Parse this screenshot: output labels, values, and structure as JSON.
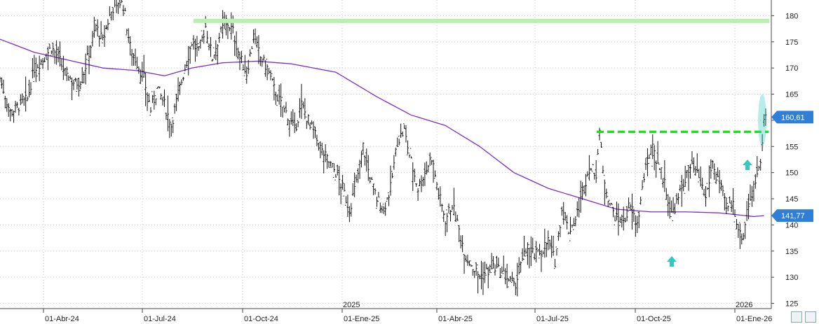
{
  "colors": {
    "price_bars": "#111111",
    "moving_average": "#7a2fc8",
    "resistance_top": "#b8f0b0",
    "breakout_line": "#22dd22",
    "arrows": "#33c9c0",
    "price_tag": "#2f7fd6",
    "grid": "#c8c8c8"
  },
  "chart_data": {
    "type": "ohlc-bar",
    "y_range": [
      124,
      183
    ],
    "y_ticks": [
      125,
      130,
      135,
      140,
      145,
      150,
      155,
      160,
      165,
      170,
      175,
      180
    ],
    "x_ticks": [
      "01-Abr-24",
      "01-Jul-24",
      "01-Oct-24",
      "01-Ene-25",
      "01-Abr-25",
      "01-Jul-25",
      "01-Oct-25",
      "01-Ene-26"
    ],
    "year_labels": [
      "2025",
      "2026"
    ],
    "grid": "dotted",
    "price_tags": [
      {
        "label": "160,61",
        "value": 160.61
      },
      {
        "label": "141,77",
        "value": 141.77
      }
    ],
    "price_path": [
      [
        0,
        168
      ],
      [
        6,
        161.5
      ],
      [
        12,
        163
      ],
      [
        16,
        164
      ],
      [
        20,
        170
      ],
      [
        26,
        172
      ],
      [
        30,
        174
      ],
      [
        34,
        172
      ],
      [
        38,
        169
      ],
      [
        44,
        167
      ],
      [
        48,
        168
      ],
      [
        52,
        173
      ],
      [
        56,
        178
      ],
      [
        60,
        175
      ],
      [
        64,
        180
      ],
      [
        68,
        183
      ],
      [
        72,
        182
      ],
      [
        76,
        174
      ],
      [
        80,
        171
      ],
      [
        84,
        168
      ],
      [
        88,
        162
      ],
      [
        92,
        166
      ],
      [
        96,
        163
      ],
      [
        100,
        159
      ],
      [
        104,
        165
      ],
      [
        108,
        170
      ],
      [
        112,
        175
      ],
      [
        116,
        173
      ],
      [
        120,
        178
      ],
      [
        124,
        172
      ],
      [
        128,
        176
      ],
      [
        132,
        179
      ],
      [
        136,
        177
      ],
      [
        140,
        172
      ],
      [
        144,
        169
      ],
      [
        148,
        176
      ],
      [
        152,
        172
      ],
      [
        156,
        170
      ],
      [
        160,
        166
      ],
      [
        164,
        163
      ],
      [
        168,
        161
      ],
      [
        172,
        158
      ],
      [
        176,
        163
      ],
      [
        180,
        160
      ],
      [
        184,
        157
      ],
      [
        188,
        154
      ],
      [
        192,
        152
      ],
      [
        196,
        150
      ],
      [
        200,
        147
      ],
      [
        204,
        143
      ],
      [
        208,
        148
      ],
      [
        212,
        155
      ],
      [
        216,
        149
      ],
      [
        220,
        145
      ],
      [
        224,
        143
      ],
      [
        228,
        147
      ],
      [
        232,
        156
      ],
      [
        236,
        158
      ],
      [
        240,
        152
      ],
      [
        244,
        147
      ],
      [
        248,
        150
      ],
      [
        252,
        153
      ],
      [
        256,
        146
      ],
      [
        260,
        141
      ],
      [
        264,
        144
      ],
      [
        268,
        139
      ],
      [
        272,
        134
      ],
      [
        276,
        132
      ],
      [
        280,
        130
      ],
      [
        284,
        131
      ],
      [
        288,
        132
      ],
      [
        292,
        131
      ],
      [
        296,
        130
      ],
      [
        300,
        128
      ],
      [
        304,
        132
      ],
      [
        308,
        136
      ],
      [
        312,
        134
      ],
      [
        316,
        135
      ],
      [
        320,
        137
      ],
      [
        324,
        133
      ],
      [
        328,
        143
      ],
      [
        332,
        139
      ],
      [
        336,
        141
      ],
      [
        340,
        146
      ],
      [
        344,
        151
      ],
      [
        348,
        150
      ],
      [
        350,
        158
      ],
      [
        352,
        150
      ],
      [
        356,
        144
      ],
      [
        360,
        141
      ],
      [
        364,
        141
      ],
      [
        368,
        143
      ],
      [
        372,
        140
      ],
      [
        376,
        149
      ],
      [
        380,
        155
      ],
      [
        384,
        152
      ],
      [
        388,
        148
      ],
      [
        392,
        142
      ],
      [
        396,
        145
      ],
      [
        400,
        149
      ],
      [
        404,
        151
      ],
      [
        408,
        149
      ],
      [
        412,
        145
      ],
      [
        416,
        152
      ],
      [
        420,
        148
      ],
      [
        424,
        143
      ],
      [
        428,
        144
      ],
      [
        432,
        138
      ],
      [
        434,
        138
      ],
      [
        436,
        143
      ],
      [
        440,
        147
      ],
      [
        444,
        153
      ],
      [
        446,
        160
      ],
      [
        447,
        160.6
      ]
    ],
    "moving_average_path": [
      [
        0,
        175.5
      ],
      [
        20,
        173
      ],
      [
        40,
        171.5
      ],
      [
        60,
        170
      ],
      [
        80,
        169.5
      ],
      [
        96,
        168.5
      ],
      [
        112,
        170
      ],
      [
        130,
        171
      ],
      [
        150,
        171.3
      ],
      [
        170,
        170.8
      ],
      [
        196,
        169.2
      ],
      [
        220,
        164.5
      ],
      [
        240,
        161
      ],
      [
        260,
        159
      ],
      [
        280,
        155
      ],
      [
        300,
        150
      ],
      [
        320,
        147
      ],
      [
        340,
        145
      ],
      [
        360,
        143
      ],
      [
        380,
        142.5
      ],
      [
        400,
        142.5
      ],
      [
        420,
        142.3
      ],
      [
        440,
        141.6
      ],
      [
        447,
        141.8
      ]
    ],
    "resistance_top_value": 179,
    "breakout_level_value": 157.8,
    "highlight_ellipse": {
      "center_index": 445,
      "center_value": 160,
      "span_value": 5
    }
  }
}
